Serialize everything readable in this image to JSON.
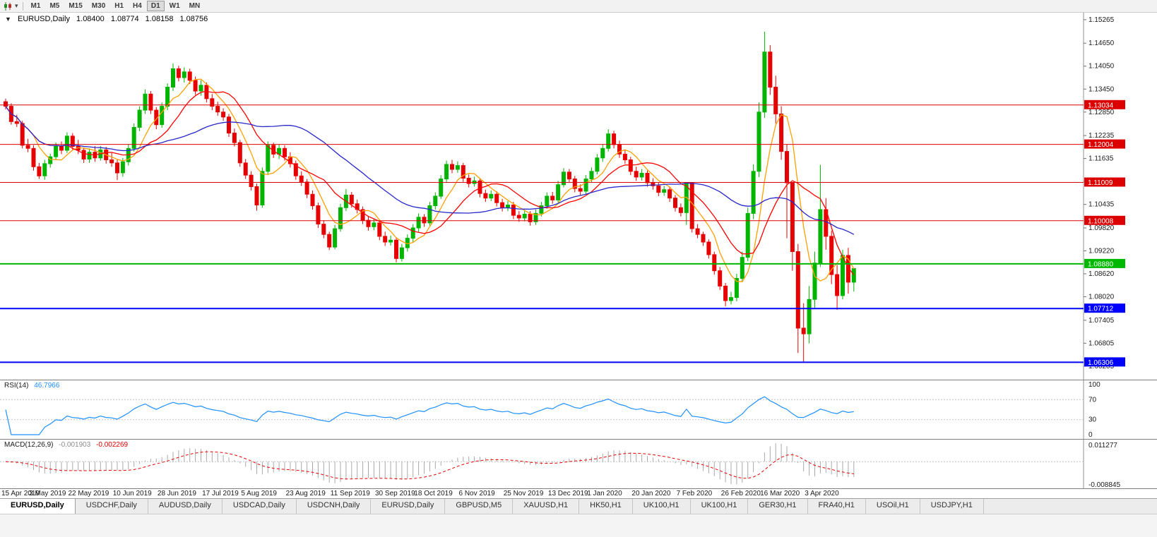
{
  "toolbar": {
    "dropdown_glyph": "▾",
    "timeframes": [
      "M1",
      "M5",
      "M15",
      "M30",
      "H1",
      "H4",
      "D1",
      "W1",
      "MN"
    ],
    "active_timeframe": "D1"
  },
  "chart": {
    "title": "EURUSD,Daily",
    "one_click_icon": "▼",
    "ohlc": {
      "open": "1.08400",
      "high": "1.08774",
      "low": "1.08158",
      "close": "1.08756"
    }
  },
  "chart_data": {
    "type": "candlestick",
    "symbol": "EURUSD",
    "period": "Daily",
    "price_range": [
      1.06,
      1.153
    ],
    "price_axis_labels": [
      "1.15265",
      "1.14650",
      "1.14050",
      "1.13450",
      "1.12850",
      "1.12235",
      "1.11635",
      "1.11035",
      "1.10435",
      "1.09820",
      "1.09220",
      "1.08620",
      "1.08020",
      "1.07405",
      "1.06805",
      "1.06205"
    ],
    "date_ticks": [
      "15 Apr 2019",
      "3 May 2019",
      "22 May 2019",
      "10 Jun 2019",
      "28 Jun 2019",
      "17 Jul 2019",
      "5 Aug 2019",
      "23 Aug 2019",
      "11 Sep 2019",
      "30 Sep 2019",
      "18 Oct 2019",
      "6 Nov 2019",
      "25 Nov 2019",
      "13 Dec 2019",
      "1 Jan 2020",
      "20 Jan 2020",
      "7 Feb 2020",
      "26 Feb 2020",
      "16 Mar 2020",
      "3 Apr 2020"
    ],
    "colors": {
      "up": "#00B400",
      "down": "#E60000",
      "background": "#FFFFFF"
    },
    "candles": [
      [
        1.1312,
        1.132,
        1.1292,
        1.13
      ],
      [
        1.13,
        1.1308,
        1.1252,
        1.126
      ],
      [
        1.126,
        1.1278,
        1.1246,
        1.1255
      ],
      [
        1.1255,
        1.1262,
        1.119,
        1.1198
      ],
      [
        1.1198,
        1.1215,
        1.118,
        1.119
      ],
      [
        1.119,
        1.1198,
        1.1132,
        1.1142
      ],
      [
        1.1142,
        1.1152,
        1.111,
        1.1118
      ],
      [
        1.1118,
        1.116,
        1.1108,
        1.115
      ],
      [
        1.115,
        1.1176,
        1.114,
        1.1168
      ],
      [
        1.1168,
        1.1205,
        1.116,
        1.1195
      ],
      [
        1.1195,
        1.1208,
        1.1175,
        1.1185
      ],
      [
        1.1185,
        1.1232,
        1.1178,
        1.1222
      ],
      [
        1.1222,
        1.123,
        1.1185,
        1.1195
      ],
      [
        1.1195,
        1.1212,
        1.1175,
        1.1185
      ],
      [
        1.1185,
        1.1192,
        1.1152,
        1.1162
      ],
      [
        1.1162,
        1.119,
        1.1152,
        1.118
      ],
      [
        1.118,
        1.1196,
        1.1155,
        1.1165
      ],
      [
        1.1165,
        1.1196,
        1.1158,
        1.1186
      ],
      [
        1.1186,
        1.1194,
        1.115,
        1.116
      ],
      [
        1.116,
        1.1178,
        1.1142,
        1.1152
      ],
      [
        1.1152,
        1.116,
        1.1107,
        1.1126
      ],
      [
        1.1126,
        1.1165,
        1.1116,
        1.1155
      ],
      [
        1.1155,
        1.12,
        1.1145,
        1.119
      ],
      [
        1.119,
        1.1255,
        1.1182,
        1.1245
      ],
      [
        1.1245,
        1.13,
        1.1235,
        1.129
      ],
      [
        1.129,
        1.1344,
        1.128,
        1.1332
      ],
      [
        1.1332,
        1.134,
        1.128,
        1.129
      ],
      [
        1.129,
        1.1298,
        1.124,
        1.1252
      ],
      [
        1.1252,
        1.131,
        1.1244,
        1.13
      ],
      [
        1.13,
        1.136,
        1.129,
        1.135
      ],
      [
        1.135,
        1.1412,
        1.134,
        1.1398
      ],
      [
        1.1398,
        1.1406,
        1.1365,
        1.1375
      ],
      [
        1.1375,
        1.1402,
        1.1362,
        1.139
      ],
      [
        1.139,
        1.1398,
        1.1358,
        1.1368
      ],
      [
        1.1368,
        1.1378,
        1.133,
        1.134
      ],
      [
        1.134,
        1.1368,
        1.1328,
        1.1355
      ],
      [
        1.1355,
        1.1362,
        1.131,
        1.132
      ],
      [
        1.132,
        1.1332,
        1.129,
        1.13
      ],
      [
        1.13,
        1.1312,
        1.1275,
        1.1285
      ],
      [
        1.1285,
        1.1295,
        1.1262,
        1.1272
      ],
      [
        1.1272,
        1.128,
        1.122,
        1.123
      ],
      [
        1.123,
        1.1242,
        1.1195,
        1.1205
      ],
      [
        1.1205,
        1.1212,
        1.1142,
        1.1152
      ],
      [
        1.1152,
        1.1162,
        1.111,
        1.112
      ],
      [
        1.112,
        1.113,
        1.108,
        1.109
      ],
      [
        1.109,
        1.1098,
        1.1027,
        1.1042
      ],
      [
        1.1042,
        1.114,
        1.1035,
        1.113
      ],
      [
        1.113,
        1.1208,
        1.112,
        1.1198
      ],
      [
        1.1198,
        1.1205,
        1.1165,
        1.1175
      ],
      [
        1.1175,
        1.12,
        1.1162,
        1.119
      ],
      [
        1.119,
        1.1198,
        1.1158,
        1.1168
      ],
      [
        1.1168,
        1.118,
        1.114,
        1.115
      ],
      [
        1.115,
        1.1158,
        1.1108,
        1.1118
      ],
      [
        1.1118,
        1.113,
        1.1092,
        1.1102
      ],
      [
        1.1102,
        1.111,
        1.106,
        1.107
      ],
      [
        1.107,
        1.108,
        1.103,
        1.104
      ],
      [
        1.104,
        1.1048,
        1.0982,
        1.0992
      ],
      [
        1.0992,
        1.1002,
        1.0955,
        1.0965
      ],
      [
        1.0965,
        1.0972,
        1.0924,
        1.0932
      ],
      [
        1.0932,
        1.099,
        1.0926,
        1.098
      ],
      [
        1.098,
        1.1045,
        1.0972,
        1.1035
      ],
      [
        1.1035,
        1.1084,
        1.1026,
        1.1068
      ],
      [
        1.1068,
        1.1076,
        1.1035,
        1.1045
      ],
      [
        1.1045,
        1.1056,
        1.102,
        1.103
      ],
      [
        1.103,
        1.1038,
        1.0992,
        1.1002
      ],
      [
        1.1002,
        1.1012,
        1.0975,
        1.0985
      ],
      [
        1.0985,
        1.1006,
        1.0976,
        1.0995
      ],
      [
        1.0995,
        1.1002,
        1.095,
        1.096
      ],
      [
        1.096,
        1.0972,
        1.0935,
        1.0945
      ],
      [
        1.0945,
        1.0962,
        1.0936,
        1.095
      ],
      [
        1.095,
        1.0958,
        1.0892,
        1.0902
      ],
      [
        1.0902,
        1.094,
        1.0894,
        1.093
      ],
      [
        1.093,
        1.0965,
        1.092,
        1.0955
      ],
      [
        1.0955,
        1.0992,
        1.0945,
        1.0982
      ],
      [
        1.0982,
        1.102,
        1.0972,
        1.101
      ],
      [
        1.101,
        1.1018,
        1.0985,
        1.0995
      ],
      [
        1.0995,
        1.105,
        1.0988,
        1.104
      ],
      [
        1.104,
        1.1075,
        1.103,
        1.1065
      ],
      [
        1.1065,
        1.112,
        1.1058,
        1.111
      ],
      [
        1.111,
        1.1158,
        1.11,
        1.1148
      ],
      [
        1.1148,
        1.116,
        1.1125,
        1.1135
      ],
      [
        1.1135,
        1.1156,
        1.1126,
        1.1145
      ],
      [
        1.1145,
        1.1152,
        1.1102,
        1.1112
      ],
      [
        1.1112,
        1.1122,
        1.1088,
        1.1098
      ],
      [
        1.1098,
        1.1116,
        1.109,
        1.1105
      ],
      [
        1.1105,
        1.1112,
        1.1062,
        1.1072
      ],
      [
        1.1072,
        1.1082,
        1.105,
        1.106
      ],
      [
        1.106,
        1.108,
        1.1052,
        1.107
      ],
      [
        1.107,
        1.1078,
        1.1038,
        1.1048
      ],
      [
        1.1048,
        1.1058,
        1.1025,
        1.1035
      ],
      [
        1.1035,
        1.1052,
        1.1026,
        1.1042
      ],
      [
        1.1042,
        1.105,
        1.1005,
        1.1015
      ],
      [
        1.1015,
        1.1026,
        1.0998,
        1.1008
      ],
      [
        1.1008,
        1.1028,
        1.0999,
        1.1018
      ],
      [
        1.1018,
        1.1026,
        1.0988,
        1.0998
      ],
      [
        1.0998,
        1.103,
        1.099,
        1.102
      ],
      [
        1.102,
        1.105,
        1.1012,
        1.104
      ],
      [
        1.104,
        1.1075,
        1.1032,
        1.1065
      ],
      [
        1.1065,
        1.1076,
        1.1045,
        1.1055
      ],
      [
        1.1055,
        1.1105,
        1.1048,
        1.1095
      ],
      [
        1.1095,
        1.1138,
        1.1088,
        1.1128
      ],
      [
        1.1128,
        1.1136,
        1.11,
        1.111
      ],
      [
        1.111,
        1.1118,
        1.1075,
        1.1085
      ],
      [
        1.1085,
        1.1096,
        1.1066,
        1.1078
      ],
      [
        1.1078,
        1.112,
        1.107,
        1.111
      ],
      [
        1.111,
        1.114,
        1.1102,
        1.113
      ],
      [
        1.113,
        1.1175,
        1.1122,
        1.1165
      ],
      [
        1.1165,
        1.12,
        1.1155,
        1.119
      ],
      [
        1.119,
        1.124,
        1.1182,
        1.1228
      ],
      [
        1.1228,
        1.1236,
        1.119,
        1.12
      ],
      [
        1.12,
        1.121,
        1.1165,
        1.1175
      ],
      [
        1.1175,
        1.1186,
        1.115,
        1.116
      ],
      [
        1.116,
        1.1168,
        1.112,
        1.113
      ],
      [
        1.113,
        1.1142,
        1.1105,
        1.1115
      ],
      [
        1.1115,
        1.1136,
        1.1106,
        1.1125
      ],
      [
        1.1125,
        1.1132,
        1.109,
        1.11
      ],
      [
        1.11,
        1.1112,
        1.1082,
        1.1092
      ],
      [
        1.1092,
        1.11,
        1.1065,
        1.1075
      ],
      [
        1.1075,
        1.1092,
        1.1066,
        1.1082
      ],
      [
        1.1082,
        1.109,
        1.105,
        1.106
      ],
      [
        1.106,
        1.1068,
        1.1025,
        1.1035
      ],
      [
        1.1035,
        1.1046,
        1.1012,
        1.1022
      ],
      [
        1.1022,
        1.103,
        1.099,
        1.11
      ],
      [
        1.11,
        1.1008,
        1.097,
        1.098
      ],
      [
        1.098,
        1.0992,
        1.0955,
        1.0965
      ],
      [
        1.0965,
        1.0972,
        1.0935,
        1.0945
      ],
      [
        1.0945,
        1.0952,
        1.0902,
        1.0912
      ],
      [
        1.0912,
        1.092,
        1.086,
        1.087
      ],
      [
        1.087,
        1.088,
        1.082,
        1.083
      ],
      [
        1.083,
        1.0838,
        1.0777,
        1.0792
      ],
      [
        1.0792,
        1.0815,
        1.0782,
        1.08
      ],
      [
        1.08,
        1.0862,
        1.079,
        1.085
      ],
      [
        1.085,
        1.092,
        1.0842,
        1.0905
      ],
      [
        1.0905,
        1.1035,
        1.0895,
        1.102
      ],
      [
        1.102,
        1.1148,
        1.1005,
        1.113
      ],
      [
        1.113,
        1.131,
        1.1115,
        1.1285
      ],
      [
        1.1285,
        1.1495,
        1.127,
        1.1442
      ],
      [
        1.1442,
        1.146,
        1.133,
        1.135
      ],
      [
        1.135,
        1.138,
        1.1255,
        1.128
      ],
      [
        1.128,
        1.13,
        1.116,
        1.1182
      ],
      [
        1.1182,
        1.12,
        1.0955,
        1.11
      ],
      [
        1.11,
        1.104,
        1.087,
        1.092
      ],
      [
        1.092,
        1.094,
        1.0655,
        1.072
      ],
      [
        1.072,
        1.0785,
        1.0631,
        1.0705
      ],
      [
        1.0705,
        1.083,
        1.068,
        1.0795
      ],
      [
        1.0795,
        1.092,
        1.077,
        1.089
      ],
      [
        1.089,
        1.1147,
        1.088,
        1.103
      ],
      [
        1.103,
        1.106,
        1.0925,
        1.096
      ],
      [
        1.096,
        1.0975,
        1.0835,
        1.086
      ],
      [
        1.086,
        1.0885,
        1.0768,
        1.0805
      ],
      [
        1.0805,
        1.0925,
        1.0795,
        1.091
      ],
      [
        1.091,
        1.093,
        1.081,
        1.084
      ],
      [
        1.084,
        1.08774,
        1.08158,
        1.08756
      ]
    ],
    "moving_averages": [
      {
        "type": "sma",
        "period": 6,
        "color": "#FFA000"
      },
      {
        "type": "sma",
        "period": 12,
        "color": "#FF0000"
      },
      {
        "type": "sma",
        "period": 30,
        "color": "#2727CC"
      }
    ],
    "horizontal_lines": [
      {
        "price": 1.13034,
        "label": "1.13034",
        "color": "#DD0000",
        "width": 1
      },
      {
        "price": 1.12004,
        "label": "1.12004",
        "color": "#DD0000",
        "width": 1
      },
      {
        "price": 1.11009,
        "label": "1.11009",
        "color": "#DD0000",
        "width": 1
      },
      {
        "price": 1.10008,
        "label": "1.10008",
        "color": "#DD0000",
        "width": 1
      },
      {
        "price": 1.0888,
        "label": "1.08880",
        "color": "#00B800",
        "width": 2
      },
      {
        "price": 1.07712,
        "label": "1.07712",
        "color": "#0000FF",
        "width": 2
      },
      {
        "price": 1.06306,
        "label": "1.06306",
        "color": "#0000FF",
        "width": 2
      }
    ],
    "indicators": [
      {
        "name": "RSI",
        "params": [
          14
        ],
        "label": "RSI(14)",
        "value": "46.7966",
        "color": "#1E90FF",
        "levels": [
          100,
          70,
          30,
          0
        ],
        "range": [
          0,
          100
        ]
      },
      {
        "name": "MACD",
        "params": [
          12,
          26,
          9
        ],
        "label": "MACD(12,26,9)",
        "values": [
          "-0.001903",
          "-0.002269"
        ],
        "colors": {
          "histogram": "#A9A9A9",
          "signal": "#E60000"
        },
        "axis_labels": {
          "top": "0.011277",
          "bottom": "-0.008845"
        }
      }
    ]
  },
  "tabs": {
    "items": [
      {
        "label": "EURUSD,Daily",
        "active": true
      },
      {
        "label": "USDCHF,Daily",
        "active": false
      },
      {
        "label": "AUDUSD,Daily",
        "active": false
      },
      {
        "label": "USDCAD,Daily",
        "active": false
      },
      {
        "label": "USDCNH,Daily",
        "active": false
      },
      {
        "label": "EURUSD,Daily",
        "active": false
      },
      {
        "label": "GBPUSD,M5",
        "active": false
      },
      {
        "label": "XAUUSD,H1",
        "active": false
      },
      {
        "label": "HK50,H1",
        "active": false
      },
      {
        "label": "UK100,H1",
        "active": false
      },
      {
        "label": "UK100,H1",
        "active": false
      },
      {
        "label": "GER30,H1",
        "active": false
      },
      {
        "label": "FRA40,H1",
        "active": false
      },
      {
        "label": "USOil,H1",
        "active": false
      },
      {
        "label": "USDJPY,H1",
        "active": false
      }
    ]
  }
}
